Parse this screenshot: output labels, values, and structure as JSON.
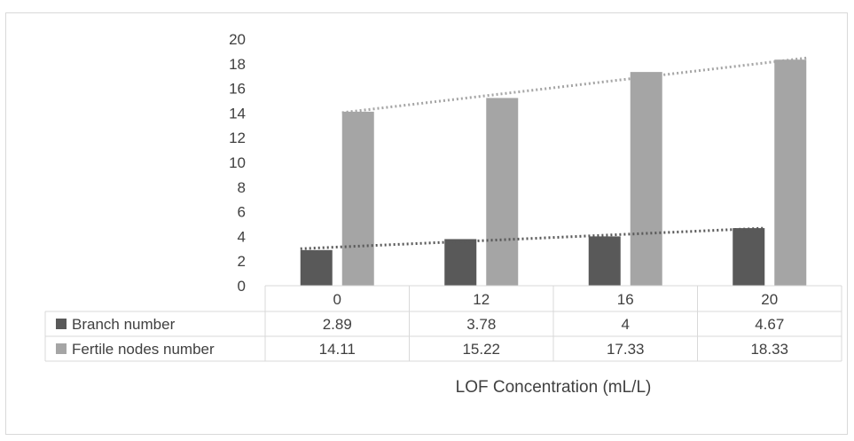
{
  "chart_data": {
    "type": "bar",
    "title": "",
    "xlabel": "LOF Concentration (mL/L)",
    "ylabel": "",
    "categories": [
      "0",
      "12",
      "16",
      "20"
    ],
    "ylim": [
      0,
      20
    ],
    "yticks": [
      0,
      2,
      4,
      6,
      8,
      10,
      12,
      14,
      16,
      18,
      20
    ],
    "grid": false,
    "legend": "data-table",
    "trendlines": "linear, dotted, one per series",
    "series": [
      {
        "name": "Branch number",
        "color": "#595959",
        "values": [
          2.89,
          3.78,
          4,
          4.67
        ],
        "labels": [
          "2.89",
          "3.78",
          "4",
          "4.67"
        ]
      },
      {
        "name": "Fertile nodes number",
        "color": "#a5a5a5",
        "values": [
          14.11,
          15.22,
          17.33,
          18.33
        ],
        "labels": [
          "14.11",
          "15.22",
          "17.33",
          "18.33"
        ]
      }
    ]
  }
}
